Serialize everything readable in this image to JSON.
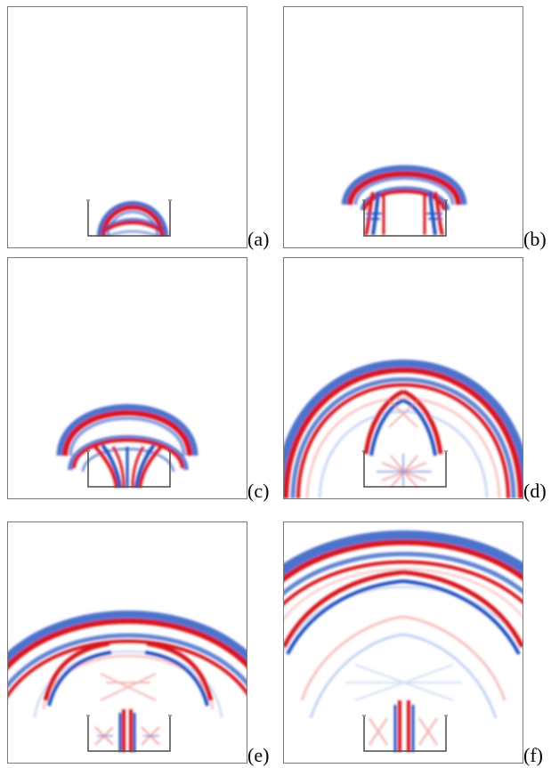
{
  "figure": {
    "panels": [
      {
        "label": "(a)"
      },
      {
        "label": "(b)"
      },
      {
        "label": "(c)"
      },
      {
        "label": "(d)"
      },
      {
        "label": "(e)"
      },
      {
        "label": "(f)"
      }
    ],
    "colors": {
      "positive": "#d7191c",
      "negative": "#1f4fbf",
      "frame": "#7a7a7a",
      "wall": "#4a4a4a",
      "background": "#ffffff"
    }
  }
}
